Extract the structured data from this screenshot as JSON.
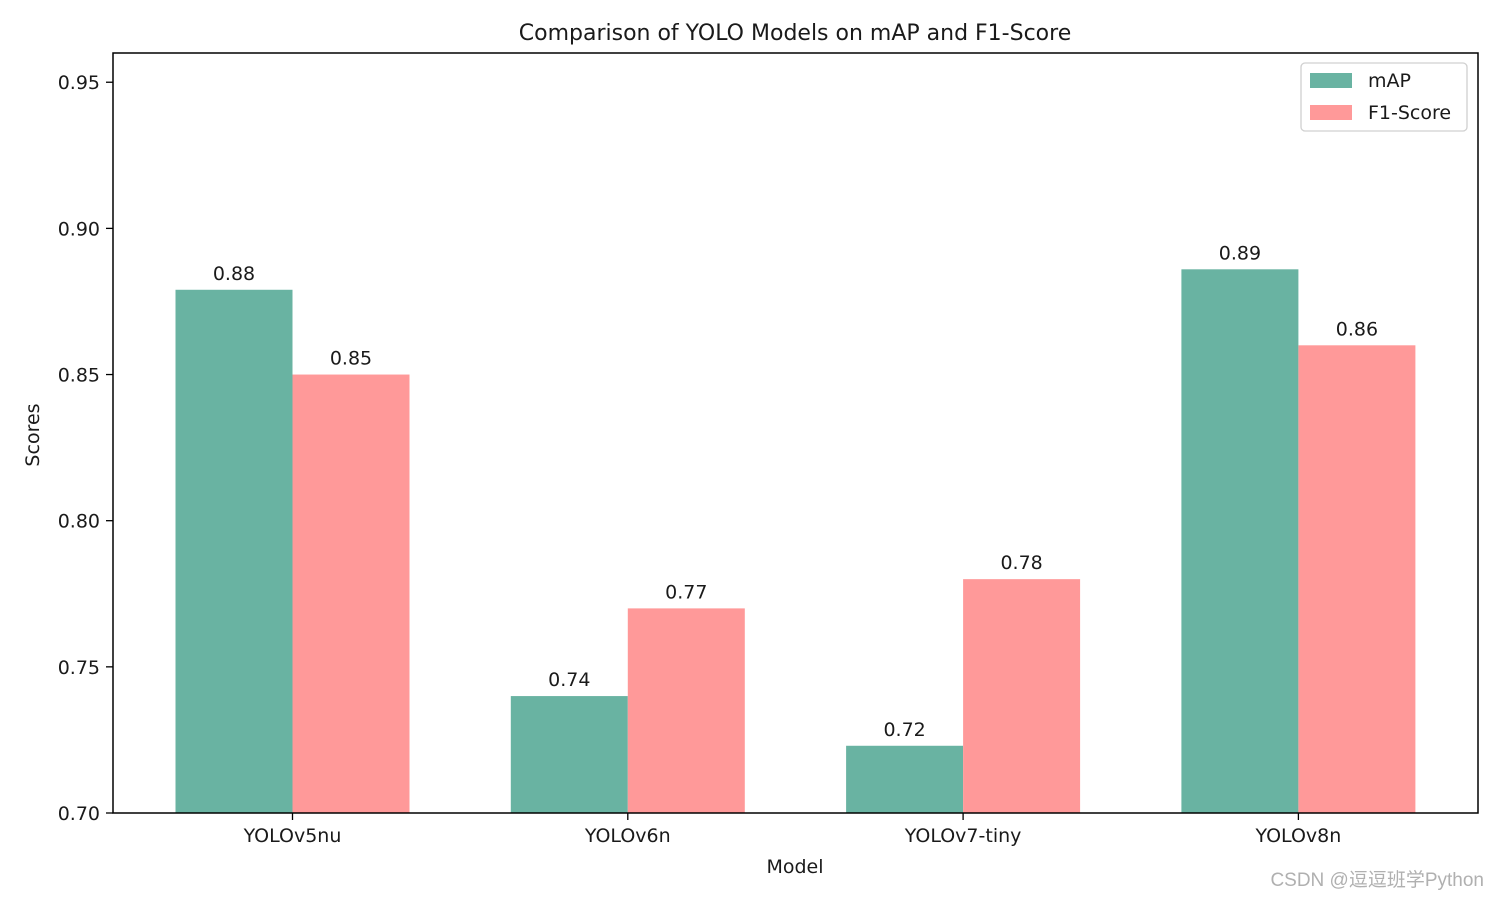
{
  "chart_data": {
    "type": "bar",
    "title": "Comparison of YOLO Models on mAP and F1-Score",
    "xlabel": "Model",
    "ylabel": "Scores",
    "categories": [
      "YOLOv5nu",
      "YOLOv6n",
      "YOLOv7-tiny",
      "YOLOv8n"
    ],
    "series": [
      {
        "name": "mAP",
        "color": "#69b3a2",
        "values": [
          0.879,
          0.74,
          0.723,
          0.886
        ],
        "labels": [
          "0.88",
          "0.74",
          "0.72",
          "0.89"
        ]
      },
      {
        "name": "F1-Score",
        "color": "#ff9999",
        "values": [
          0.85,
          0.77,
          0.78,
          0.86
        ],
        "labels": [
          "0.85",
          "0.77",
          "0.78",
          "0.86"
        ]
      }
    ],
    "ylim": [
      0.7,
      0.96
    ],
    "yticks": [
      0.7,
      0.75,
      0.8,
      0.85,
      0.9,
      0.95
    ],
    "ytick_labels": [
      "0.70",
      "0.75",
      "0.80",
      "0.85",
      "0.90",
      "0.95"
    ],
    "grid": false,
    "legend_position": "top-right"
  },
  "watermark": "CSDN @逗逗班学Python"
}
